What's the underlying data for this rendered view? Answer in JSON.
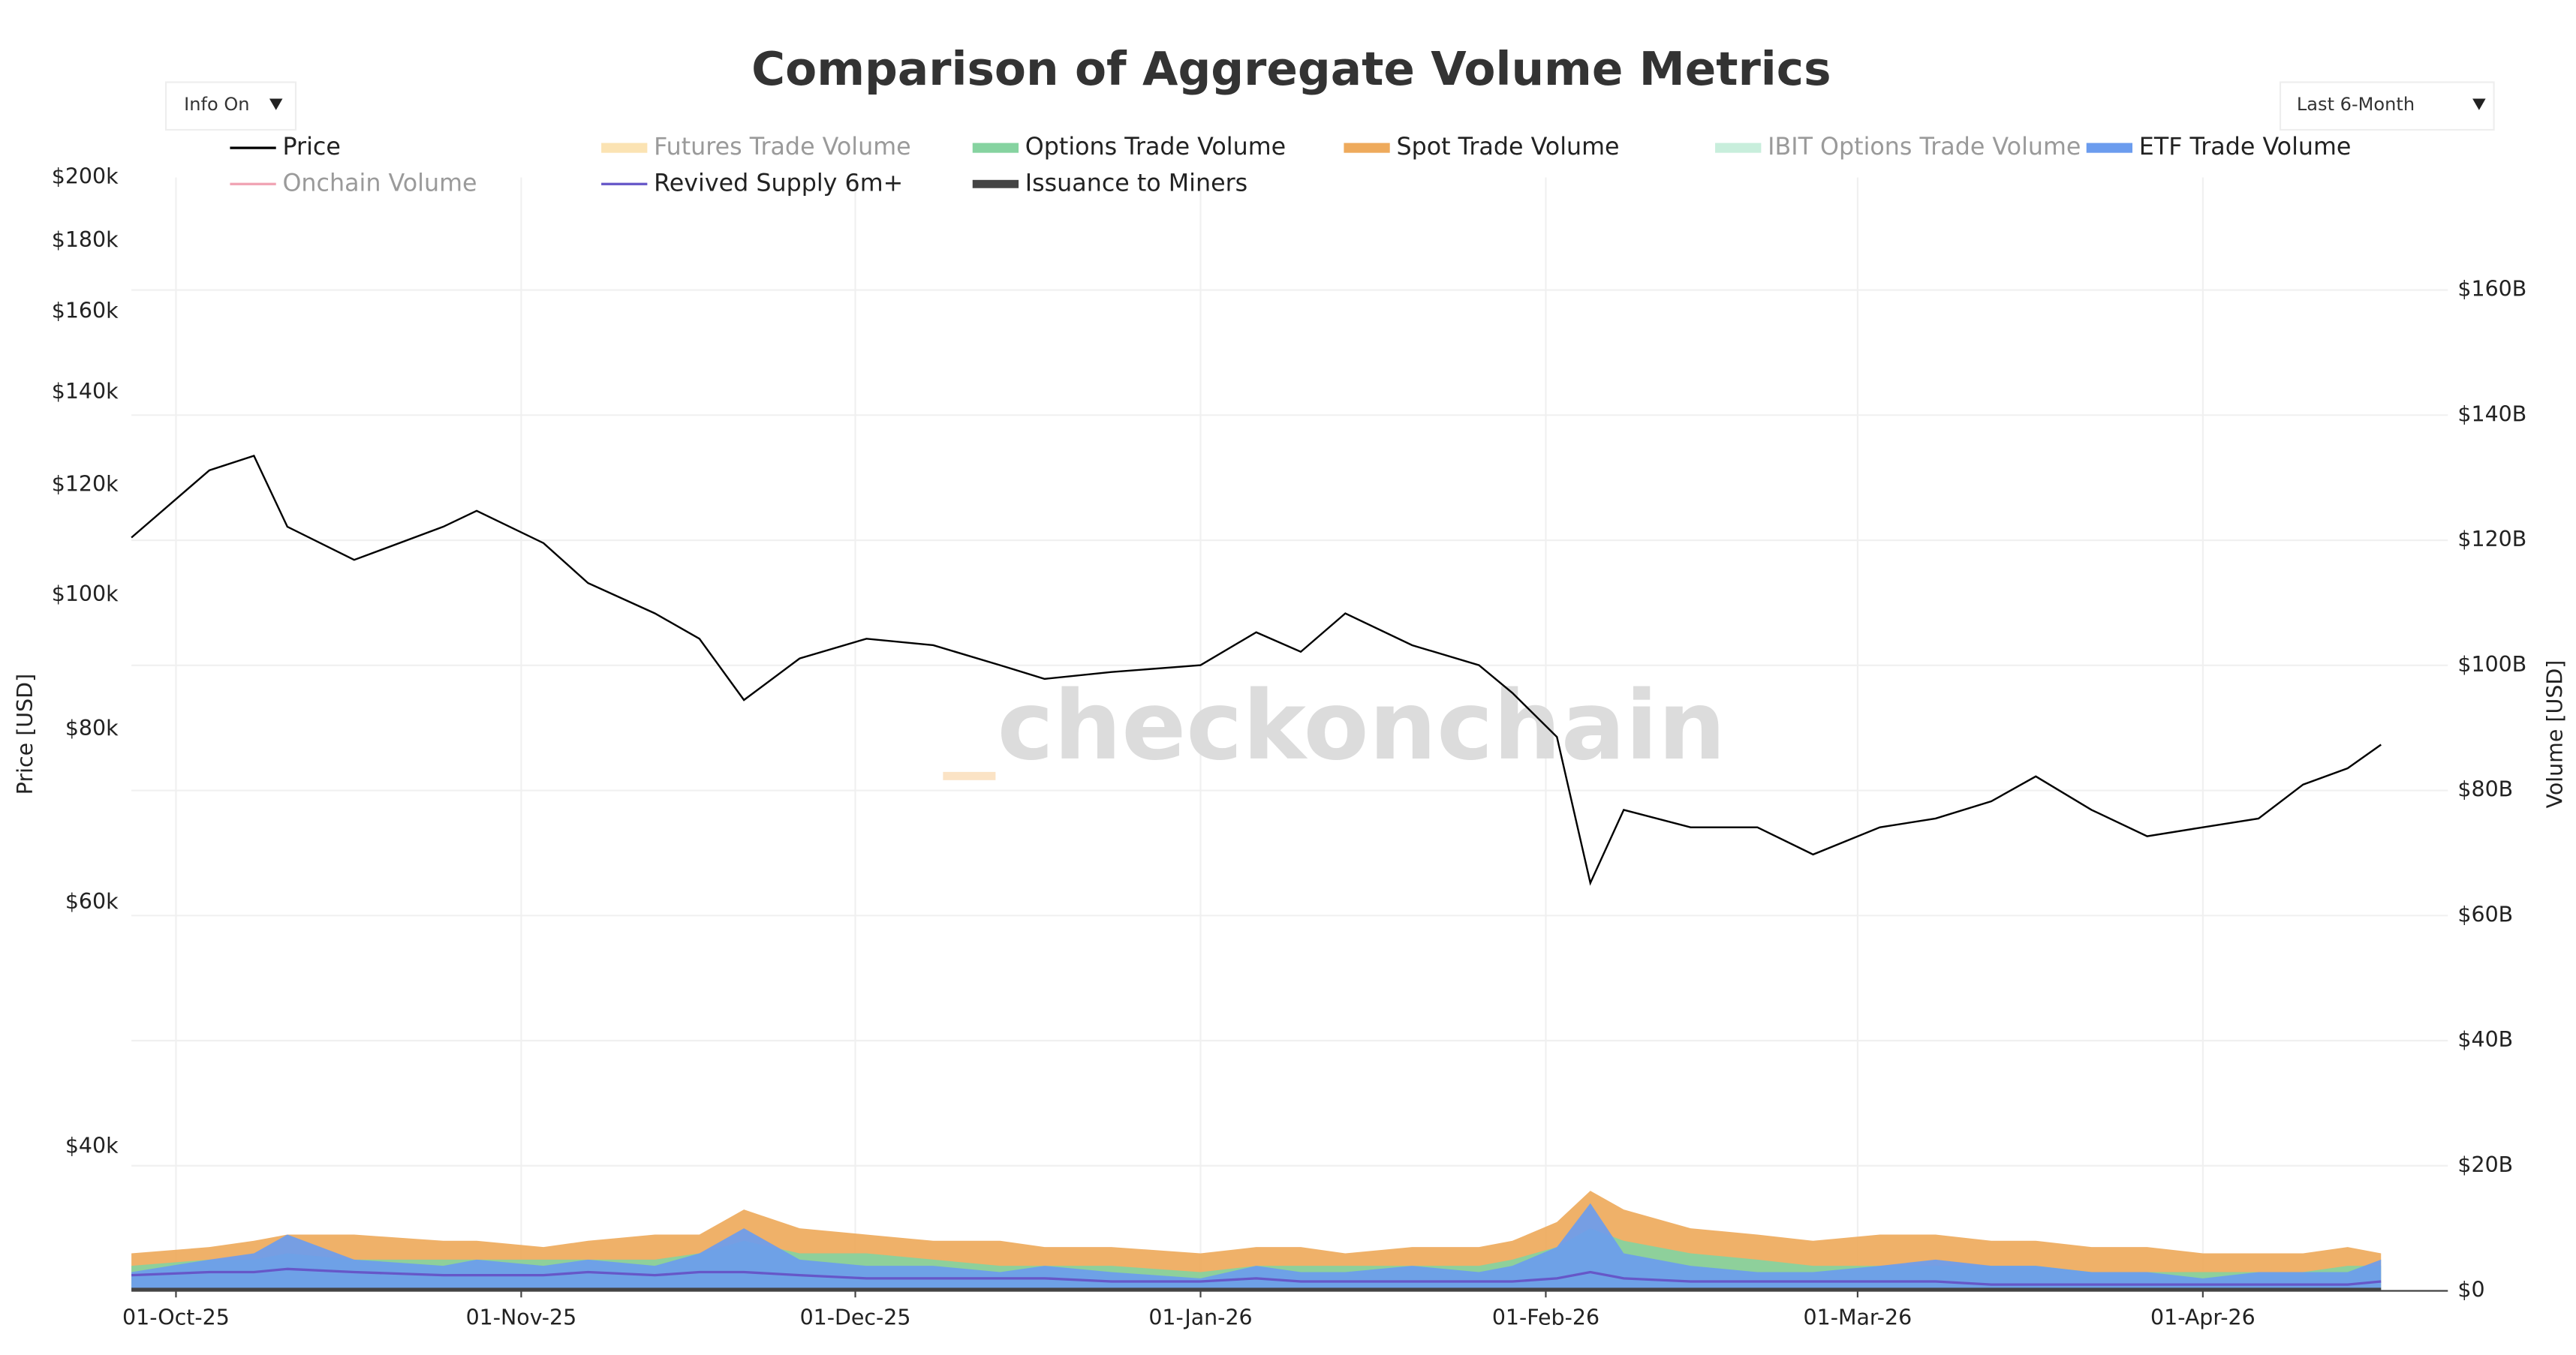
{
  "chart_data": {
    "type": "line",
    "title": "Comparison of Aggregate Volume Metrics",
    "watermark": "checkonchain",
    "controls": {
      "info": "Info On",
      "range": "Last 6-Month"
    },
    "ylabel": "Price [USD]",
    "y2label": "Volume [USD]",
    "yscale": "log",
    "grid": true,
    "legend": "top",
    "x": [
      "2025-09-27",
      "2025-10-04",
      "2025-10-08",
      "2025-10-11",
      "2025-10-17",
      "2025-10-25",
      "2025-10-28",
      "2025-11-03",
      "2025-11-07",
      "2025-11-13",
      "2025-11-17",
      "2025-11-21",
      "2025-11-26",
      "2025-12-02",
      "2025-12-08",
      "2025-12-14",
      "2025-12-18",
      "2025-12-24",
      "2026-01-01",
      "2026-01-06",
      "2026-01-10",
      "2026-01-14",
      "2026-01-20",
      "2026-01-26",
      "2026-01-29",
      "2026-02-02",
      "2026-02-05",
      "2026-02-08",
      "2026-02-14",
      "2026-02-20",
      "2026-02-25",
      "2026-03-03",
      "2026-03-08",
      "2026-03-13",
      "2026-03-17",
      "2026-03-22",
      "2026-03-27",
      "2026-04-01",
      "2026-04-06",
      "2026-04-10",
      "2026-04-14",
      "2026-04-17"
    ],
    "xlim": [
      "2025-09-27",
      "2026-04-23"
    ],
    "xticks": [
      {
        "value": "2025-10-01",
        "label": "01-Oct-25"
      },
      {
        "value": "2025-11-01",
        "label": "01-Nov-25"
      },
      {
        "value": "2025-12-01",
        "label": "01-Dec-25"
      },
      {
        "value": "2026-01-01",
        "label": "01-Jan-26"
      },
      {
        "value": "2026-02-01",
        "label": "01-Feb-26"
      },
      {
        "value": "2026-03-01",
        "label": "01-Mar-26"
      },
      {
        "value": "2026-04-01",
        "label": "01-Apr-26"
      }
    ],
    "ylim": [
      31500,
      200000
    ],
    "yticks": [
      {
        "value": 40000,
        "label": "$40k"
      },
      {
        "value": 60000,
        "label": "$60k"
      },
      {
        "value": 80000,
        "label": "$80k"
      },
      {
        "value": 100000,
        "label": "$100k"
      },
      {
        "value": 120000,
        "label": "$120k"
      },
      {
        "value": 140000,
        "label": "$140k"
      },
      {
        "value": 160000,
        "label": "$160k"
      },
      {
        "value": 180000,
        "label": "$180k"
      },
      {
        "value": 200000,
        "label": "$200k"
      }
    ],
    "y2lim": [
      0,
      178
    ],
    "y2ticks": [
      {
        "value": 0,
        "label": "$0"
      },
      {
        "value": 20,
        "label": "$20B"
      },
      {
        "value": 40,
        "label": "$40B"
      },
      {
        "value": 60,
        "label": "$60B"
      },
      {
        "value": 80,
        "label": "$80B"
      },
      {
        "value": 100,
        "label": "$100B"
      },
      {
        "value": 120,
        "label": "$120B"
      },
      {
        "value": 140,
        "label": "$140B"
      },
      {
        "value": 160,
        "label": "$160B"
      }
    ],
    "series": [
      {
        "name": "Price",
        "color": "#000000",
        "kind": "line",
        "axis": "y",
        "values": [
          110000,
          123000,
          126000,
          112000,
          106000,
          112000,
          115000,
          109000,
          102000,
          97000,
          93000,
          84000,
          90000,
          93000,
          92000,
          89000,
          87000,
          88000,
          89000,
          94000,
          91000,
          97000,
          92000,
          89000,
          85000,
          79000,
          62000,
          70000,
          68000,
          68000,
          65000,
          68000,
          69000,
          71000,
          74000,
          70000,
          67000,
          68000,
          69000,
          73000,
          75000,
          78000
        ]
      },
      {
        "name": "Futures Trade Volume",
        "color": "#fbe3b3",
        "kind": "area",
        "axis": "y2",
        "visible": false
      },
      {
        "name": "Options Trade Volume",
        "color": "#86d3a0",
        "kind": "area",
        "axis": "y2",
        "values": [
          4,
          5,
          5,
          6,
          5,
          5,
          5,
          5,
          5,
          5,
          6,
          8,
          6,
          6,
          5,
          4,
          4,
          4,
          3,
          4,
          4,
          4,
          4,
          4,
          5,
          7,
          10,
          8,
          6,
          5,
          4,
          4,
          4,
          4,
          4,
          3,
          3,
          3,
          3,
          3,
          4,
          4
        ]
      },
      {
        "name": "Spot Trade Volume",
        "color": "#eeaa5c",
        "kind": "area",
        "axis": "y2",
        "values": [
          6,
          7,
          8,
          9,
          9,
          8,
          8,
          7,
          8,
          9,
          9,
          13,
          10,
          9,
          8,
          8,
          7,
          7,
          6,
          7,
          7,
          6,
          7,
          7,
          8,
          11,
          16,
          13,
          10,
          9,
          8,
          9,
          9,
          8,
          8,
          7,
          7,
          6,
          6,
          6,
          7,
          6
        ]
      },
      {
        "name": "IBIT Options Trade Volume",
        "color": "#c8eedc",
        "kind": "area",
        "axis": "y2",
        "visible": false
      },
      {
        "name": "ETF Trade Volume",
        "color": "#6b9cee",
        "kind": "area",
        "axis": "y2",
        "values": [
          3,
          5,
          6,
          9,
          5,
          4,
          5,
          4,
          5,
          4,
          6,
          10,
          5,
          4,
          4,
          3,
          4,
          3,
          2,
          4,
          3,
          3,
          4,
          3,
          4,
          7,
          14,
          6,
          4,
          3,
          3,
          4,
          5,
          4,
          4,
          3,
          3,
          2,
          3,
          3,
          3,
          5
        ]
      },
      {
        "name": "Onchain Volume",
        "color": "#f0a3b3",
        "kind": "line",
        "axis": "y2",
        "visible": false
      },
      {
        "name": "Revived Supply 6m+",
        "color": "#6657c8",
        "kind": "line",
        "axis": "y2",
        "values": [
          2.5,
          3,
          3,
          3.5,
          3,
          2.5,
          2.5,
          2.5,
          3,
          2.5,
          3,
          3,
          2.5,
          2,
          2,
          2,
          2,
          1.5,
          1.5,
          2,
          1.5,
          1.5,
          1.5,
          1.5,
          1.5,
          2,
          3,
          2,
          1.5,
          1.5,
          1.5,
          1.5,
          1.5,
          1,
          1,
          1,
          1,
          1,
          1,
          1,
          1,
          1.5
        ]
      },
      {
        "name": "Issuance to Miners",
        "color": "#444444",
        "kind": "line",
        "axis": "y2",
        "values": [
          0.3,
          0.3,
          0.3,
          0.3,
          0.3,
          0.3,
          0.3,
          0.3,
          0.3,
          0.3,
          0.3,
          0.3,
          0.3,
          0.3,
          0.3,
          0.3,
          0.3,
          0.3,
          0.3,
          0.3,
          0.3,
          0.3,
          0.3,
          0.3,
          0.3,
          0.3,
          0.3,
          0.3,
          0.3,
          0.3,
          0.3,
          0.3,
          0.3,
          0.3,
          0.3,
          0.3,
          0.3,
          0.3,
          0.3,
          0.3,
          0.3,
          0.3
        ]
      }
    ]
  }
}
